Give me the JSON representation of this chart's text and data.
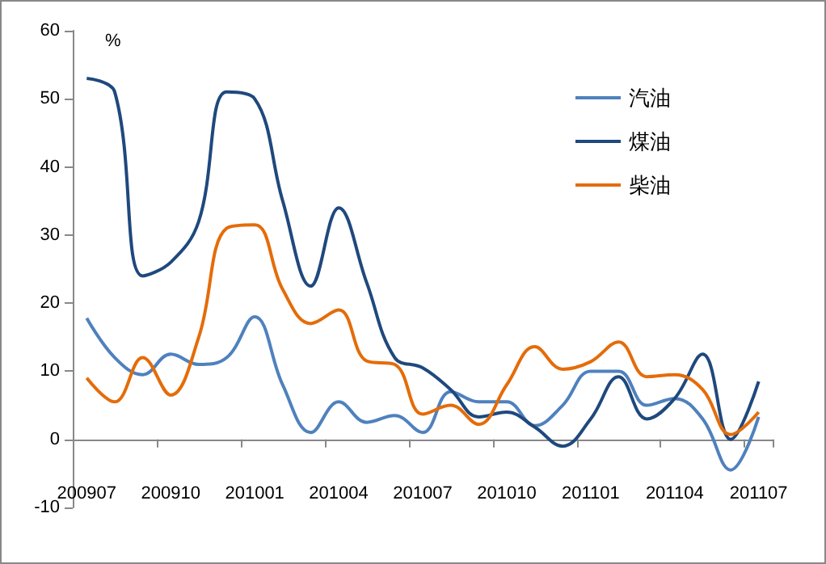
{
  "chart_data": {
    "type": "line",
    "ylabel": "%",
    "categories": [
      "200907",
      null,
      null,
      "200910",
      null,
      null,
      "201001",
      null,
      null,
      "201004",
      null,
      null,
      "201007",
      null,
      null,
      "201010",
      null,
      null,
      "201101",
      null,
      null,
      "201104",
      null,
      null,
      "201107"
    ],
    "series": [
      {
        "name": "汽油",
        "color": "#4f81bd",
        "values": [
          17.8,
          12,
          9.5,
          12.5,
          11,
          12,
          18,
          8,
          1,
          5.5,
          2.5,
          3.5,
          1,
          7,
          5.5,
          5.5,
          2,
          5,
          10,
          10,
          5,
          6,
          3,
          -4.5,
          3.3
        ]
      },
      {
        "name": "煤油",
        "color": "#1f497d",
        "values": [
          53,
          51,
          24,
          26,
          32,
          51,
          50,
          35,
          22.5,
          34,
          23,
          12,
          10.5,
          7.3,
          3.3,
          4,
          1.8,
          -1,
          3,
          9.2,
          3,
          6,
          12.5,
          0,
          8.5
        ]
      },
      {
        "name": "柴油",
        "color": "#e46c0a",
        "values": [
          9,
          5.5,
          12,
          6.5,
          15,
          31,
          31.5,
          22,
          17,
          19,
          11.5,
          11,
          3.7,
          5,
          2.2,
          8,
          13.6,
          10.3,
          11.4,
          14.3,
          9.2,
          9.5,
          7.3,
          0.7,
          4
        ]
      }
    ],
    "ylim": [
      -10,
      60
    ],
    "yticks": [
      -10,
      0,
      10,
      20,
      30,
      40,
      50,
      60
    ],
    "legend": "top right",
    "marker": "none",
    "line_style": "solid"
  }
}
